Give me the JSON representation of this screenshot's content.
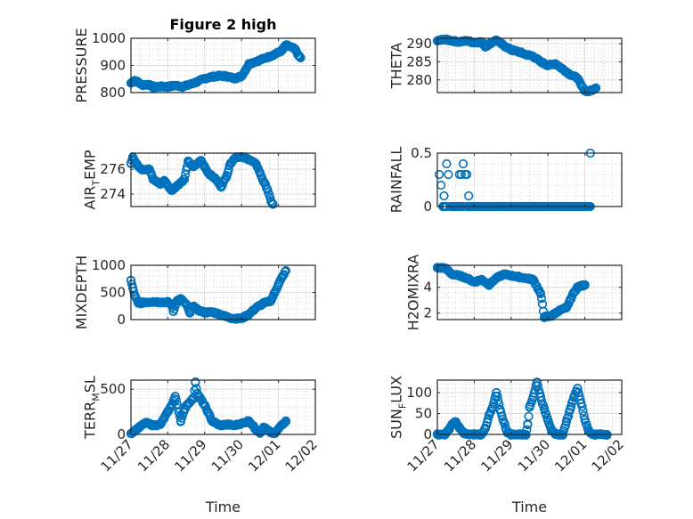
{
  "chart_data": [
    {
      "type": "scatter",
      "title": "Figure 2 high",
      "ylabel": "PRESSURE",
      "xlabel": "",
      "ylim": [
        800,
        1000
      ],
      "yticks": [
        800,
        900,
        1000
      ],
      "xlim": [
        0,
        5
      ],
      "xticks": [
        "11/27",
        "11/28",
        "11/29",
        "11/30",
        "12/01",
        "12/02"
      ],
      "show_xticklabels": false,
      "grid": true,
      "minor_grid": true,
      "profile": [
        [
          0.0,
          835
        ],
        [
          0.1,
          845
        ],
        [
          0.2,
          838
        ],
        [
          0.3,
          828
        ],
        [
          0.5,
          830
        ],
        [
          0.6,
          820
        ],
        [
          0.8,
          822
        ],
        [
          1.0,
          822
        ],
        [
          1.2,
          826
        ],
        [
          1.4,
          822
        ],
        [
          1.6,
          830
        ],
        [
          1.8,
          840
        ],
        [
          2.0,
          852
        ],
        [
          2.2,
          858
        ],
        [
          2.4,
          862
        ],
        [
          2.6,
          860
        ],
        [
          2.8,
          852
        ],
        [
          3.0,
          860
        ],
        [
          3.2,
          905
        ],
        [
          3.4,
          915
        ],
        [
          3.6,
          925
        ],
        [
          3.8,
          935
        ],
        [
          4.0,
          948
        ],
        [
          4.1,
          955
        ],
        [
          4.2,
          975
        ],
        [
          4.3,
          970
        ],
        [
          4.45,
          960
        ],
        [
          4.55,
          935
        ],
        [
          4.6,
          928
        ]
      ]
    },
    {
      "type": "scatter",
      "title": "",
      "ylabel": "THETA",
      "xlabel": "",
      "ylim": [
        276.5,
        291.5
      ],
      "yticks": [
        280,
        285,
        290
      ],
      "xlim": [
        0,
        5
      ],
      "xticks": [
        "11/27",
        "11/28",
        "11/29",
        "11/30",
        "12/01",
        "12/02"
      ],
      "show_xticklabels": false,
      "grid": true,
      "minor_grid": true,
      "profile": [
        [
          0.0,
          290.8
        ],
        [
          0.2,
          291.2
        ],
        [
          0.4,
          290.8
        ],
        [
          0.6,
          290.5
        ],
        [
          0.8,
          290.8
        ],
        [
          1.0,
          290.3
        ],
        [
          1.2,
          290.5
        ],
        [
          1.3,
          289.2
        ],
        [
          1.5,
          290.5
        ],
        [
          1.6,
          291.0
        ],
        [
          1.8,
          289.5
        ],
        [
          2.0,
          288.3
        ],
        [
          2.2,
          287.8
        ],
        [
          2.4,
          287.0
        ],
        [
          2.6,
          286.5
        ],
        [
          2.8,
          285.0
        ],
        [
          3.0,
          284.0
        ],
        [
          3.2,
          284.5
        ],
        [
          3.4,
          283.0
        ],
        [
          3.6,
          281.5
        ],
        [
          3.8,
          280.5
        ],
        [
          3.9,
          278.5
        ],
        [
          4.0,
          277.0
        ],
        [
          4.1,
          276.8
        ],
        [
          4.2,
          277.2
        ],
        [
          4.3,
          277.8
        ]
      ]
    },
    {
      "type": "scatter",
      "title": "",
      "ylabel": "AIR_TEMP",
      "ylabel_display": {
        "base": "AIR",
        "sub": "T",
        "rest": "EMP"
      },
      "xlabel": "",
      "ylim": [
        273.0,
        277.3
      ],
      "yticks": [
        274,
        276
      ],
      "xlim": [
        0,
        5
      ],
      "xticks": [
        "11/27",
        "11/28",
        "11/29",
        "11/30",
        "12/01",
        "12/02"
      ],
      "show_xticklabels": false,
      "grid": true,
      "minor_grid": true,
      "profile": [
        [
          0.0,
          276.5
        ],
        [
          0.05,
          277.0
        ],
        [
          0.15,
          276.4
        ],
        [
          0.3,
          276.0
        ],
        [
          0.5,
          276.0
        ],
        [
          0.6,
          275.2
        ],
        [
          0.8,
          274.8
        ],
        [
          0.9,
          275.1
        ],
        [
          1.0,
          274.7
        ],
        [
          1.1,
          274.3
        ],
        [
          1.3,
          274.8
        ],
        [
          1.45,
          275.2
        ],
        [
          1.55,
          276.6
        ],
        [
          1.7,
          276.2
        ],
        [
          1.9,
          276.7
        ],
        [
          2.0,
          276.2
        ],
        [
          2.1,
          275.7
        ],
        [
          2.3,
          275.2
        ],
        [
          2.45,
          274.6
        ],
        [
          2.6,
          275.5
        ],
        [
          2.7,
          276.5
        ],
        [
          2.85,
          277.0
        ],
        [
          3.0,
          277.0
        ],
        [
          3.2,
          276.8
        ],
        [
          3.4,
          276.4
        ],
        [
          3.5,
          275.7
        ],
        [
          3.6,
          275.0
        ],
        [
          3.7,
          274.4
        ],
        [
          3.8,
          273.4
        ],
        [
          3.85,
          273.2
        ]
      ]
    },
    {
      "type": "scatter",
      "title": "",
      "ylabel": "RAINFALL",
      "xlabel": "",
      "ylim": [
        0,
        0.5
      ],
      "yticks": [
        0,
        0.5
      ],
      "xlim": [
        0,
        5
      ],
      "xticks": [
        "11/27",
        "11/28",
        "11/29",
        "11/30",
        "12/01",
        "12/02"
      ],
      "show_xticklabels": false,
      "grid": true,
      "minor_grid": true,
      "points": [
        [
          0.05,
          0.3
        ],
        [
          0.1,
          0.2
        ],
        [
          0.15,
          0.0
        ],
        [
          0.18,
          0.1
        ],
        [
          0.25,
          0.4
        ],
        [
          0.3,
          0.3
        ],
        [
          0.6,
          0.3
        ],
        [
          0.65,
          0.3
        ],
        [
          0.7,
          0.4
        ],
        [
          0.75,
          0.3
        ],
        [
          0.8,
          0.3
        ],
        [
          0.85,
          0.1
        ],
        [
          4.15,
          0.5
        ]
      ],
      "zero_runs": [
        [
          0.15,
          0.25
        ],
        [
          0.35,
          0.7
        ],
        [
          0.8,
          4.15
        ]
      ]
    },
    {
      "type": "scatter",
      "title": "",
      "ylabel": "MIXDEPTH",
      "xlabel": "",
      "ylim": [
        0,
        1000
      ],
      "yticks": [
        0,
        500,
        1000
      ],
      "xlim": [
        0,
        5
      ],
      "xticks": [
        "11/27",
        "11/28",
        "11/29",
        "11/30",
        "12/01",
        "12/02"
      ],
      "show_xticklabels": false,
      "grid": true,
      "minor_grid": true,
      "profile": [
        [
          0.0,
          720
        ],
        [
          0.05,
          580
        ],
        [
          0.1,
          450
        ],
        [
          0.2,
          300
        ],
        [
          0.4,
          320
        ],
        [
          0.6,
          330
        ],
        [
          0.8,
          320
        ],
        [
          1.0,
          320
        ],
        [
          1.1,
          280
        ],
        [
          1.15,
          150
        ],
        [
          1.25,
          350
        ],
        [
          1.35,
          380
        ],
        [
          1.5,
          280
        ],
        [
          1.6,
          120
        ],
        [
          1.7,
          250
        ],
        [
          1.8,
          180
        ],
        [
          2.0,
          130
        ],
        [
          2.2,
          140
        ],
        [
          2.4,
          100
        ],
        [
          2.6,
          50
        ],
        [
          2.8,
          20
        ],
        [
          3.0,
          20
        ],
        [
          3.2,
          100
        ],
        [
          3.4,
          220
        ],
        [
          3.6,
          300
        ],
        [
          3.8,
          350
        ],
        [
          3.9,
          500
        ],
        [
          4.0,
          650
        ],
        [
          4.1,
          780
        ],
        [
          4.2,
          900
        ]
      ]
    },
    {
      "type": "scatter",
      "title": "",
      "ylabel": "H2OMIXRA",
      "xlabel": "",
      "ylim": [
        1.5,
        5.7
      ],
      "yticks": [
        2,
        4
      ],
      "xlim": [
        0,
        5
      ],
      "xticks": [
        "11/27",
        "11/28",
        "11/29",
        "11/30",
        "12/01",
        "12/02"
      ],
      "show_xticklabels": false,
      "grid": true,
      "minor_grid": true,
      "profile": [
        [
          0.0,
          5.5
        ],
        [
          0.2,
          5.5
        ],
        [
          0.4,
          5.0
        ],
        [
          0.6,
          4.9
        ],
        [
          0.8,
          4.7
        ],
        [
          1.0,
          4.4
        ],
        [
          1.2,
          4.6
        ],
        [
          1.4,
          4.2
        ],
        [
          1.6,
          4.7
        ],
        [
          1.8,
          5.0
        ],
        [
          2.0,
          4.9
        ],
        [
          2.2,
          4.8
        ],
        [
          2.4,
          4.7
        ],
        [
          2.6,
          4.6
        ],
        [
          2.8,
          3.5
        ],
        [
          2.85,
          2.7
        ],
        [
          2.9,
          1.7
        ],
        [
          3.1,
          1.8
        ],
        [
          3.3,
          2.2
        ],
        [
          3.5,
          2.4
        ],
        [
          3.6,
          3.0
        ],
        [
          3.7,
          3.6
        ],
        [
          3.8,
          4.0
        ],
        [
          4.0,
          4.2
        ]
      ]
    },
    {
      "type": "scatter",
      "title": "",
      "ylabel": "TERR_MSL",
      "ylabel_display": {
        "base": "TERR",
        "sub": "M",
        "rest": "SL"
      },
      "xlabel": "Time",
      "ylim": [
        0,
        600
      ],
      "yticks": [
        0,
        500
      ],
      "xlim": [
        0,
        5
      ],
      "xticks": [
        "11/27",
        "11/28",
        "11/29",
        "11/30",
        "12/01",
        "12/02"
      ],
      "show_xticklabels": true,
      "grid": true,
      "minor_grid": true,
      "profile": [
        [
          0.0,
          10
        ],
        [
          0.1,
          40
        ],
        [
          0.2,
          70
        ],
        [
          0.4,
          130
        ],
        [
          0.6,
          100
        ],
        [
          0.8,
          110
        ],
        [
          1.0,
          250
        ],
        [
          1.1,
          320
        ],
        [
          1.2,
          420
        ],
        [
          1.3,
          250
        ],
        [
          1.35,
          150
        ],
        [
          1.5,
          320
        ],
        [
          1.7,
          400
        ],
        [
          1.75,
          580
        ],
        [
          1.8,
          450
        ],
        [
          2.0,
          320
        ],
        [
          2.2,
          150
        ],
        [
          2.4,
          100
        ],
        [
          2.6,
          110
        ],
        [
          2.8,
          100
        ],
        [
          3.0,
          120
        ],
        [
          3.2,
          150
        ],
        [
          3.4,
          50
        ],
        [
          3.5,
          20
        ],
        [
          3.6,
          80
        ],
        [
          3.8,
          20
        ],
        [
          3.9,
          10
        ],
        [
          4.0,
          60
        ],
        [
          4.1,
          110
        ],
        [
          4.2,
          150
        ]
      ]
    },
    {
      "type": "scatter",
      "title": "",
      "ylabel": "SUN_FLUX",
      "ylabel_display": {
        "base": "SUN",
        "sub": "F",
        "rest": "LUX"
      },
      "xlabel": "Time",
      "ylim": [
        0,
        130
      ],
      "yticks": [
        0,
        50,
        100
      ],
      "xlim": [
        0,
        5
      ],
      "xticks": [
        "11/27",
        "11/28",
        "11/29",
        "11/30",
        "12/01",
        "12/02"
      ],
      "show_xticklabels": true,
      "grid": true,
      "minor_grid": true,
      "profile": [
        [
          0.0,
          0
        ],
        [
          0.2,
          0
        ],
        [
          0.3,
          10
        ],
        [
          0.4,
          25
        ],
        [
          0.5,
          30
        ],
        [
          0.6,
          15
        ],
        [
          0.7,
          5
        ],
        [
          0.8,
          0
        ],
        [
          1.0,
          0
        ],
        [
          1.2,
          0
        ],
        [
          1.3,
          15
        ],
        [
          1.4,
          45
        ],
        [
          1.5,
          65
        ],
        [
          1.6,
          100
        ],
        [
          1.7,
          60
        ],
        [
          1.8,
          30
        ],
        [
          1.9,
          5
        ],
        [
          2.0,
          0
        ],
        [
          2.2,
          0
        ],
        [
          2.4,
          0
        ],
        [
          2.45,
          25
        ],
        [
          2.5,
          65
        ],
        [
          2.6,
          90
        ],
        [
          2.7,
          125
        ],
        [
          2.8,
          90
        ],
        [
          2.9,
          60
        ],
        [
          3.0,
          35
        ],
        [
          3.1,
          10
        ],
        [
          3.2,
          0
        ],
        [
          3.4,
          0
        ],
        [
          3.5,
          30
        ],
        [
          3.6,
          60
        ],
        [
          3.7,
          90
        ],
        [
          3.8,
          110
        ],
        [
          3.9,
          75
        ],
        [
          4.0,
          35
        ],
        [
          4.1,
          10
        ],
        [
          4.2,
          0
        ],
        [
          4.4,
          0
        ],
        [
          4.6,
          0
        ]
      ]
    }
  ],
  "style": {
    "marker_color": "#0072BD",
    "axis_color": "#262626",
    "grid_color": "#dcdcdc",
    "minor_grid_color": "#c0c0c0"
  }
}
